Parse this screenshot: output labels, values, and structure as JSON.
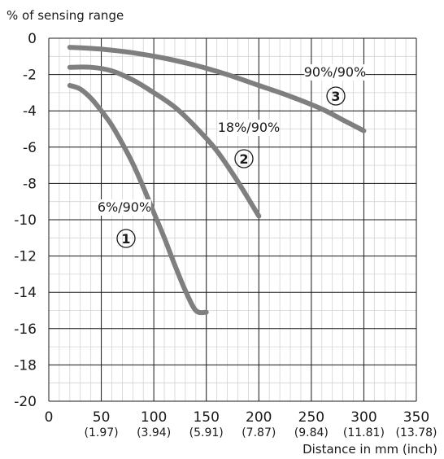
{
  "chart_data": {
    "type": "line",
    "ylabel": "% of sensing range",
    "xlabel": "Distance in mm (inch)",
    "xlim": [
      0,
      350
    ],
    "ylim": [
      -20,
      0
    ],
    "x_ticks": [
      {
        "value": 0,
        "label": "0",
        "sub": ""
      },
      {
        "value": 50,
        "label": "50",
        "sub": "(1.97)"
      },
      {
        "value": 100,
        "label": "100",
        "sub": "(3.94)"
      },
      {
        "value": 150,
        "label": "150",
        "sub": "(5.91)"
      },
      {
        "value": 200,
        "label": "200",
        "sub": "(7.87)"
      },
      {
        "value": 250,
        "label": "250",
        "sub": "(9.84)"
      },
      {
        "value": 300,
        "label": "300",
        "sub": "(11.81)"
      },
      {
        "value": 350,
        "label": "350",
        "sub": "(13.78)"
      }
    ],
    "y_ticks": [
      {
        "value": 0,
        "label": "0"
      },
      {
        "value": -2,
        "label": "-2"
      },
      {
        "value": -4,
        "label": "-4"
      },
      {
        "value": -6,
        "label": "-6"
      },
      {
        "value": -8,
        "label": "-8"
      },
      {
        "value": -10,
        "label": "-10"
      },
      {
        "value": -12,
        "label": "-12"
      },
      {
        "value": -14,
        "label": "-14"
      },
      {
        "value": -16,
        "label": "-16"
      },
      {
        "value": -18,
        "label": "-18"
      },
      {
        "value": -20,
        "label": "-20"
      }
    ],
    "grid": true,
    "series": [
      {
        "name": "6%/90%",
        "marker": "1",
        "color": "#7f7f7f",
        "points": [
          [
            20,
            -2.6
          ],
          [
            30,
            -2.8
          ],
          [
            40,
            -3.3
          ],
          [
            50,
            -4.0
          ],
          [
            60,
            -4.8
          ],
          [
            70,
            -5.8
          ],
          [
            80,
            -6.9
          ],
          [
            90,
            -8.2
          ],
          [
            100,
            -9.6
          ],
          [
            110,
            -11.0
          ],
          [
            120,
            -12.5
          ],
          [
            130,
            -13.9
          ],
          [
            140,
            -15.0
          ],
          [
            150,
            -15.1
          ]
        ]
      },
      {
        "name": "18%/90%",
        "marker": "2",
        "color": "#7f7f7f",
        "points": [
          [
            20,
            -1.6
          ],
          [
            40,
            -1.6
          ],
          [
            60,
            -1.8
          ],
          [
            80,
            -2.3
          ],
          [
            100,
            -3.0
          ],
          [
            120,
            -3.8
          ],
          [
            140,
            -4.9
          ],
          [
            160,
            -6.2
          ],
          [
            180,
            -7.9
          ],
          [
            200,
            -9.8
          ]
        ]
      },
      {
        "name": "90%/90%",
        "marker": "3",
        "color": "#7f7f7f",
        "points": [
          [
            20,
            -0.5
          ],
          [
            50,
            -0.6
          ],
          [
            80,
            -0.8
          ],
          [
            110,
            -1.1
          ],
          [
            140,
            -1.5
          ],
          [
            170,
            -2.0
          ],
          [
            200,
            -2.6
          ],
          [
            230,
            -3.2
          ],
          [
            260,
            -3.9
          ],
          [
            280,
            -4.5
          ],
          [
            300,
            -5.1
          ]
        ]
      }
    ]
  }
}
